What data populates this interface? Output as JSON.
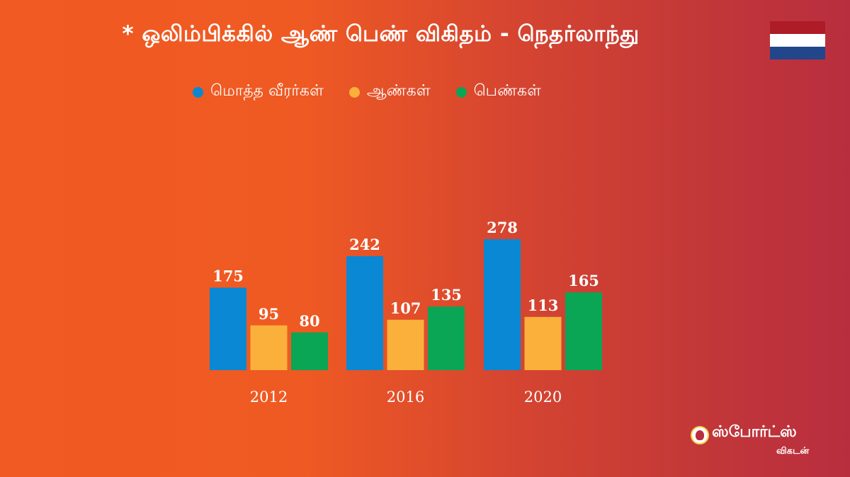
{
  "title": "* ஒலிம்பிக்கில் ஆண் பெண் விகிதம் - நெதர்லாந்து",
  "flag": {
    "colors": [
      "#ae1c28",
      "#ffffff",
      "#21468b"
    ],
    "icon": "netherlands-flag-icon"
  },
  "legend": [
    {
      "label": "மொத்த வீரர்கள்",
      "color": "#0b88d3"
    },
    {
      "label": "ஆண்கள்",
      "color": "#fbb03b"
    },
    {
      "label": "பெண்கள்",
      "color": "#0aa555"
    }
  ],
  "chart_data": {
    "type": "bar",
    "title": "* ஒலிம்பிக்கில் ஆண் பெண் விகிதம் - நெதர்லாந்து",
    "xlabel": "",
    "ylabel": "",
    "categories": [
      "2012",
      "2016",
      "2020"
    ],
    "series": [
      {
        "name": "மொத்த வீரர்கள்",
        "color": "#0b88d3",
        "values": [
          175,
          242,
          278
        ]
      },
      {
        "name": "ஆண்கள்",
        "color": "#fbb03b",
        "values": [
          95,
          107,
          113
        ]
      },
      {
        "name": "பெண்கள்",
        "color": "#0aa555",
        "values": [
          80,
          135,
          165
        ]
      }
    ],
    "ylim": [
      0,
      278
    ],
    "grid": false,
    "legend_position": "top"
  },
  "brand": {
    "name": "ஸ்போர்ட்ஸ்",
    "sub": "விகடன்",
    "icon": "vikatan-logo-icon"
  }
}
